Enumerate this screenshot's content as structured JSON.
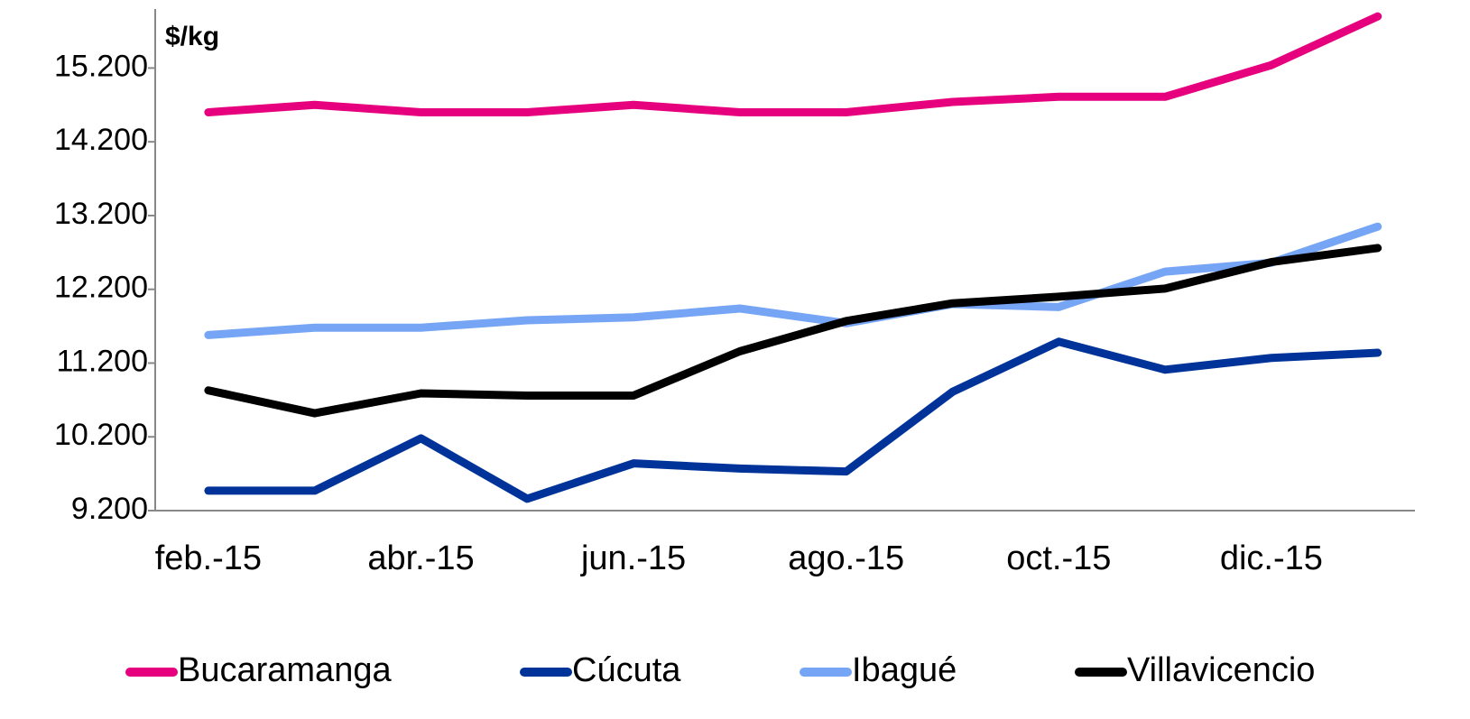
{
  "chart_data": {
    "type": "line",
    "y_label": "$/kg",
    "categories": [
      "feb.-15",
      null,
      "abr.-15",
      null,
      "jun.-15",
      null,
      "ago.-15",
      null,
      "oct.-15",
      null,
      "dic.-15",
      null
    ],
    "series": [
      {
        "name": "Bucaramanga",
        "color": "#e6007e",
        "values": [
          14600,
          14700,
          14600,
          14600,
          14700,
          14600,
          14600,
          14740,
          14810,
          14810,
          15240,
          15900
        ]
      },
      {
        "name": "Cúcuta",
        "color": "#003399",
        "values": [
          9470,
          9470,
          10180,
          9360,
          9840,
          9770,
          9730,
          10810,
          11490,
          11110,
          11270,
          11340
        ]
      },
      {
        "name": "Ibagué",
        "color": "#76a5f5",
        "values": [
          11580,
          11680,
          11680,
          11780,
          11820,
          11940,
          11740,
          12000,
          11960,
          12440,
          12560,
          13050
        ]
      },
      {
        "name": "Villavicencio",
        "color": "#000000",
        "values": [
          10830,
          10520,
          10790,
          10760,
          10760,
          11360,
          11770,
          12010,
          12100,
          12210,
          12570,
          12760
        ]
      }
    ],
    "ylim": [
      9200,
      16000
    ],
    "yticks": [
      {
        "value": 9200,
        "label": "9.200"
      },
      {
        "value": 10200,
        "label": "10.200"
      },
      {
        "value": 11200,
        "label": "11.200"
      },
      {
        "value": 12200,
        "label": "12.200"
      },
      {
        "value": 13200,
        "label": "13.200"
      },
      {
        "value": 14200,
        "label": "14.200"
      },
      {
        "value": 15200,
        "label": "15.200"
      }
    ],
    "legend": "bottom"
  }
}
